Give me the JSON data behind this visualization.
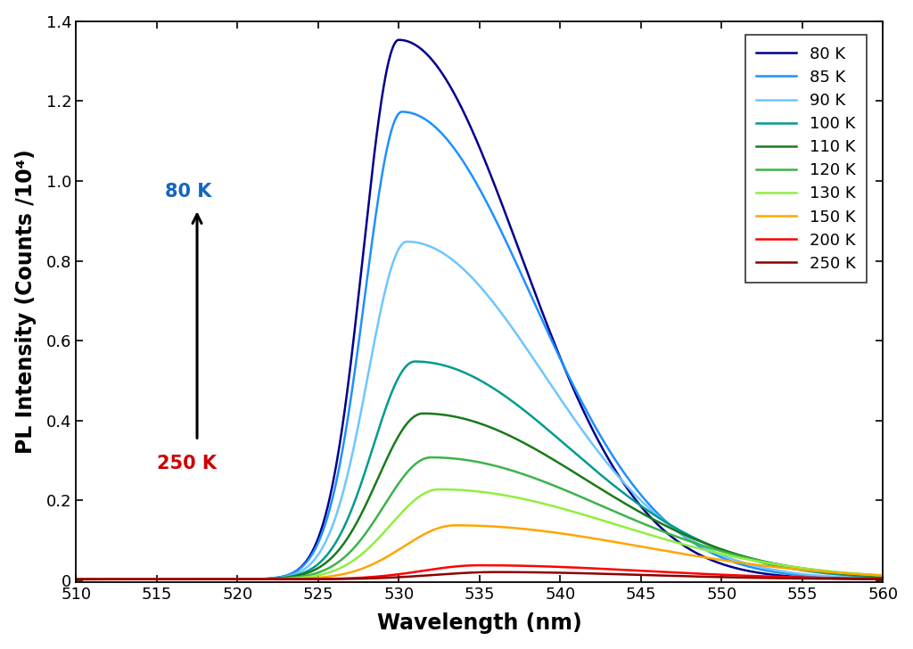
{
  "temperatures": [
    80,
    85,
    90,
    100,
    110,
    120,
    130,
    150,
    200,
    250
  ],
  "colors": [
    "#00008B",
    "#1E90FF",
    "#6EC6FF",
    "#009B8D",
    "#1A7A1A",
    "#3CB34A",
    "#90EE40",
    "#FFA500",
    "#FF0000",
    "#8B0000"
  ],
  "peak_wavelengths": [
    530.0,
    530.2,
    530.5,
    531.0,
    531.5,
    532.0,
    532.5,
    533.5,
    535.0,
    536.0
  ],
  "peak_heights": [
    1.35,
    1.17,
    0.845,
    0.545,
    0.415,
    0.305,
    0.225,
    0.135,
    0.035,
    0.018
  ],
  "sigma_left": [
    2.2,
    2.3,
    2.4,
    2.6,
    2.8,
    2.9,
    3.0,
    3.2,
    3.5,
    3.8
  ],
  "sigma_right": [
    7.5,
    8.0,
    8.5,
    9.5,
    10.0,
    10.5,
    11.0,
    11.5,
    10.0,
    9.0
  ],
  "xmin": 510,
  "xmax": 560,
  "ymin": -0.005,
  "ymax": 1.4,
  "xlabel": "Wavelength (nm)",
  "ylabel": "PL Intensity (Counts /10⁴)",
  "xticks": [
    510,
    515,
    520,
    525,
    530,
    535,
    540,
    545,
    550,
    555,
    560
  ],
  "yticks": [
    0.0,
    0.2,
    0.4,
    0.6,
    0.8,
    1.0,
    1.2,
    1.4
  ],
  "label_80K_color": "#1565C0",
  "label_250K_color": "#CC0000",
  "background_color": "#FFFFFF",
  "linewidth": 1.8,
  "figsize": [
    10.24,
    7.28
  ],
  "dpi": 100
}
